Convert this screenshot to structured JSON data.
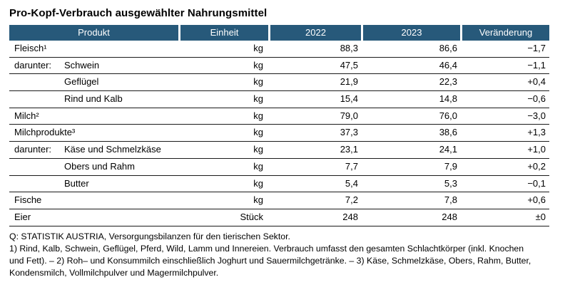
{
  "title": "Pro-Kopf-Verbrauch ausgewählter Nahrungsmittel",
  "table": {
    "columns": [
      "Produkt",
      "Einheit",
      "2022",
      "2023",
      "Veränderung"
    ],
    "rows": [
      {
        "prefix": "",
        "name": "Fleisch¹",
        "unit": "kg",
        "v2022": "88,3",
        "v2023": "86,6",
        "change": "−1,7"
      },
      {
        "prefix": "darunter:",
        "name": "Schwein",
        "unit": "kg",
        "v2022": "47,5",
        "v2023": "46,4",
        "change": "−1,1"
      },
      {
        "prefix": "",
        "name": "Geflügel",
        "unit": "kg",
        "v2022": "21,9",
        "v2023": "22,3",
        "change": "+0,4"
      },
      {
        "prefix": "",
        "name": "Rind und Kalb",
        "unit": "kg",
        "v2022": "15,4",
        "v2023": "14,8",
        "change": "−0,6"
      },
      {
        "prefix": "",
        "name": "Milch²",
        "unit": "kg",
        "v2022": "79,0",
        "v2023": "76,0",
        "change": "−3,0"
      },
      {
        "prefix": "",
        "name": "Milchprodukte³",
        "unit": "kg",
        "v2022": "37,3",
        "v2023": "38,6",
        "change": "+1,3"
      },
      {
        "prefix": "darunter:",
        "name": "Käse und Schmelzkäse",
        "unit": "kg",
        "v2022": "23,1",
        "v2023": "24,1",
        "change": "+1,0"
      },
      {
        "prefix": "",
        "name": "Obers und Rahm",
        "unit": "kg",
        "v2022": "7,7",
        "v2023": "7,9",
        "change": "+0,2"
      },
      {
        "prefix": "",
        "name": "Butter",
        "unit": "kg",
        "v2022": "5,4",
        "v2023": "5,3",
        "change": "−0,1"
      },
      {
        "prefix": "",
        "name": "Fische",
        "unit": "kg",
        "v2022": "7,2",
        "v2023": "7,8",
        "change": "+0,6"
      },
      {
        "prefix": "",
        "name": "Eier",
        "unit": "Stück",
        "v2022": "248",
        "v2023": "248",
        "change": "±0"
      }
    ]
  },
  "notes": [
    "Q: STATISTIK AUSTRIA, Versorgungsbilanzen für den tierischen Sektor.",
    "1) Rind, Kalb, Schwein, Geflügel, Pferd, Wild, Lamm und Innereien. Verbrauch umfasst den gesamten Schlachtkörper (inkl. Knochen",
    "und Fett). – 2) Roh– und Konsummilch einschließlich Joghurt und Sauermilchgetränke. – 3) Käse, Schmelzkäse, Obers, Rahm, Butter,",
    "Kondensmilch, Vollmilchpulver und Magermilchpulver."
  ],
  "colors": {
    "header_bg": "#27597A",
    "header_text": "#FFFFFF",
    "line": "#1A1A1A"
  }
}
